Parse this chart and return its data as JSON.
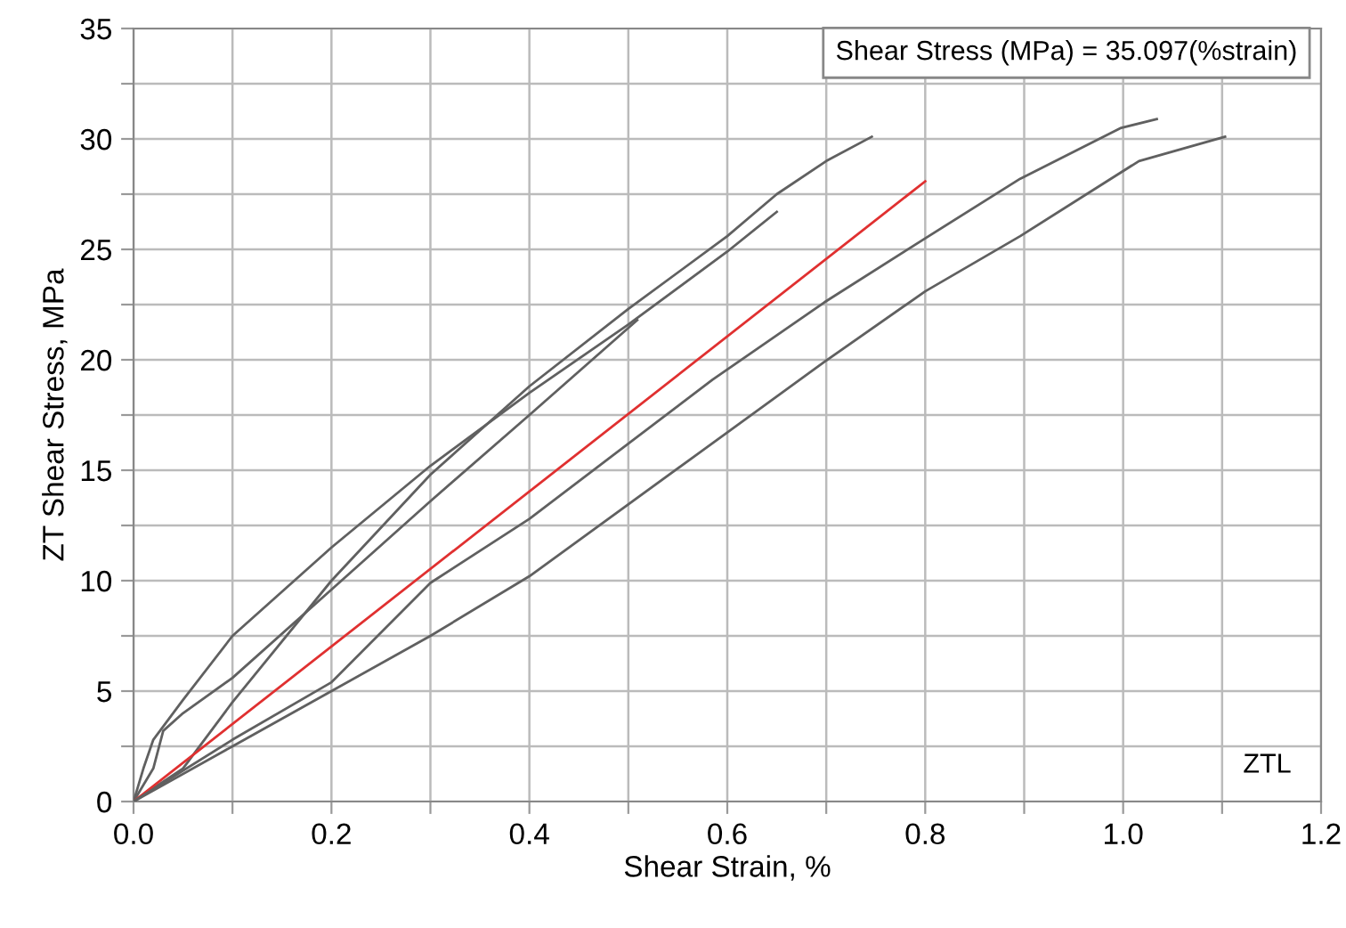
{
  "chart_data": {
    "type": "line",
    "xlabel": "Shear Strain, %",
    "ylabel": "ZT Shear Stress, MPa",
    "xlim": [
      0,
      1.2
    ],
    "ylim": [
      0,
      35
    ],
    "xticks": [
      {
        "value": 0,
        "label": "0.0"
      },
      {
        "value": 0.1,
        "label": null
      },
      {
        "value": 0.2,
        "label": "0.2"
      },
      {
        "value": 0.3,
        "label": null
      },
      {
        "value": 0.4,
        "label": "0.4"
      },
      {
        "value": 0.5,
        "label": null
      },
      {
        "value": 0.6,
        "label": "0.6"
      },
      {
        "value": 0.7,
        "label": null
      },
      {
        "value": 0.8,
        "label": "0.8"
      },
      {
        "value": 0.9,
        "label": null
      },
      {
        "value": 1.0,
        "label": "1.0"
      },
      {
        "value": 1.1,
        "label": null
      },
      {
        "value": 1.2,
        "label": "1.2"
      }
    ],
    "yticks": [
      0,
      {
        "value": 2.5,
        "label": null
      },
      5,
      {
        "value": 7.5,
        "label": null
      },
      10,
      {
        "value": 12.5,
        "label": null
      },
      15,
      {
        "value": 17.5,
        "label": null
      },
      20,
      {
        "value": 22.5,
        "label": null
      },
      25,
      {
        "value": 27.5,
        "label": null
      },
      30,
      {
        "value": 32.5,
        "label": null
      },
      35
    ],
    "grid": true,
    "marker": "none",
    "line_style": "solid",
    "series": [
      {
        "color": "#606060",
        "x": [
          0,
          0.01,
          0.02,
          0.05,
          0.1,
          0.2,
          0.3,
          0.4,
          0.5,
          0.6,
          0.65
        ],
        "values": [
          0,
          1.5,
          2.8,
          4.6,
          7.5,
          11.5,
          15.2,
          18.5,
          21.6,
          24.9,
          26.7
        ]
      },
      {
        "color": "#606060",
        "x": [
          0,
          0.02,
          0.03,
          0.05,
          0.1,
          0.2,
          0.3,
          0.4,
          0.509
        ],
        "values": [
          0,
          1.5,
          3.2,
          4.0,
          5.6,
          9.6,
          13.6,
          17.5,
          21.8
        ]
      },
      {
        "color": "#606060",
        "x": [
          0,
          0.05,
          0.1,
          0.2,
          0.3,
          0.4,
          0.5,
          0.6,
          0.65,
          0.7,
          0.746
        ],
        "values": [
          0,
          1.5,
          4.5,
          10.0,
          14.8,
          18.8,
          22.3,
          25.6,
          27.5,
          29.0,
          30.1
        ]
      },
      {
        "color": "#e03030",
        "x": [
          0,
          0.8
        ],
        "values": [
          0,
          28.08
        ]
      },
      {
        "color": "#606060",
        "x": [
          0,
          0.1,
          0.2,
          0.3,
          0.4,
          0.585,
          0.698,
          0.8,
          0.896,
          0.998,
          1.034
        ],
        "values": [
          0,
          2.8,
          5.4,
          9.9,
          12.8,
          19.1,
          22.6,
          25.5,
          28.2,
          30.5,
          30.9
        ]
      },
      {
        "color": "#606060",
        "x": [
          0,
          0.1,
          0.2,
          0.3,
          0.4,
          0.698,
          0.8,
          0.896,
          1.016,
          1.103
        ],
        "values": [
          0,
          2.5,
          5.0,
          7.5,
          10.2,
          19.9,
          23.1,
          25.6,
          29.0,
          30.1
        ]
      }
    ],
    "annotations": [
      "Shear Stress (MPa) = 35.097(%strain)",
      "ZTL"
    ]
  }
}
